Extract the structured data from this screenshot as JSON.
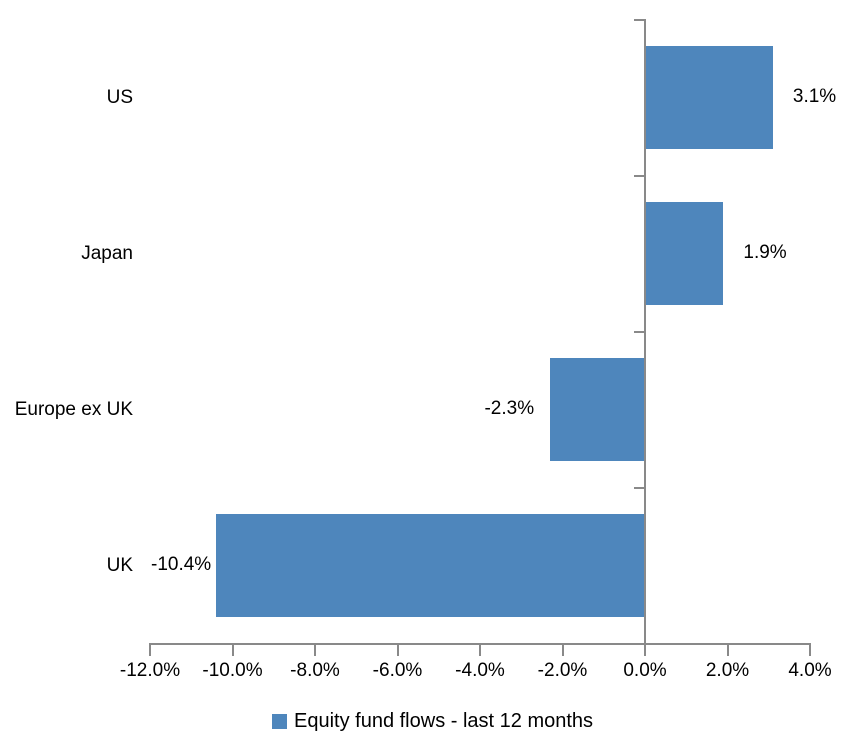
{
  "chart_data": {
    "type": "bar",
    "orientation": "horizontal",
    "categories": [
      "US",
      "Japan",
      "Europe ex UK",
      "UK"
    ],
    "values": [
      3.1,
      1.9,
      -2.3,
      -10.4
    ],
    "value_labels": [
      "3.1%",
      "1.9%",
      "-2.3%",
      "-10.4%"
    ],
    "series_name": "Equity fund flows - last 12 months",
    "xlim": [
      -12,
      4
    ],
    "x_ticks": [
      -12,
      -10,
      -8,
      -6,
      -4,
      -2,
      0,
      2,
      4
    ],
    "x_tick_labels": [
      "-12.0%",
      "-10.0%",
      "-8.0%",
      "-6.0%",
      "-4.0%",
      "-2.0%",
      "0.0%",
      "2.0%",
      "4.0%"
    ],
    "grid": false,
    "legend_position": "bottom",
    "bar_color": "#4e86bc",
    "axis_color": "#898989",
    "text_color": "#000000"
  },
  "legend": {
    "label": "Equity fund flows - last 12 months"
  }
}
